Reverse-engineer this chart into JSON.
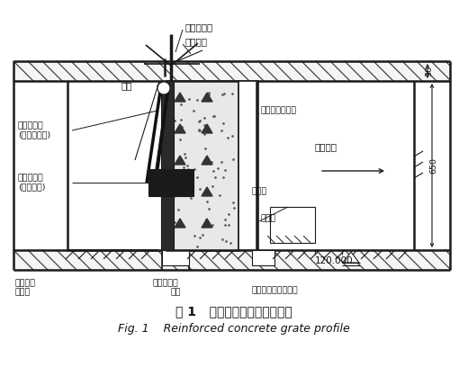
{
  "bg_color": "#ffffff",
  "fig_title_cn": "图 1   钢筋混凝土闸门剖面示意",
  "fig_title_en": "Fig. 1    Reinforced concrete grate profile",
  "labels": {
    "gate_top": "导流孔闸门",
    "support": "启闭支架",
    "pulley": "滑轮",
    "gate_open_1": "导流孔闸门",
    "gate_open_2": "(过流时位置)",
    "gate_closed_1": "导流孔闸门",
    "gate_closed_2": "(关闭位置)",
    "rc_gate": "钢筋混凝土闸门",
    "tunnel": "导流隧洞",
    "guide_hole": "导流孔",
    "cofferdam": "小围堰",
    "elevation": "120.000",
    "dim_30": "30",
    "dim_650": "650",
    "steel_gate_1": "施工挡水",
    "steel_gate_2": "钢闸门",
    "work_gate": "施工钢闸门",
    "gate_slot_label": "门槽",
    "rc_slot": "钢筋混凝土闸门门槽"
  },
  "colors": {
    "line": "#1a1a1a",
    "concrete_fill": "#d8d8d8",
    "concrete_dot": "#333333",
    "hatch_line": "#2a2a2a",
    "dark_gate": "#222222",
    "white": "#ffffff"
  }
}
